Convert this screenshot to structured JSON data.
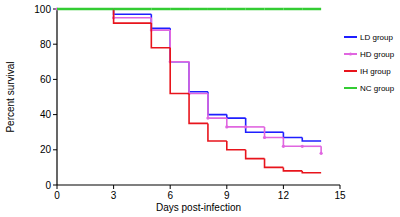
{
  "chart_data": {
    "type": "line",
    "line_style": "step",
    "x_label": "Days post-infection",
    "y_label": "Percent survival",
    "x": [
      0,
      3,
      5,
      6,
      7,
      8,
      9,
      10,
      11,
      12,
      13,
      14
    ],
    "series": [
      {
        "name": "LD group",
        "color": "#1f1fff",
        "values": [
          100,
          97,
          89,
          70,
          53,
          40,
          38,
          30,
          30,
          27,
          25,
          25
        ]
      },
      {
        "name": "HD group",
        "color": "#e066e0",
        "marker": "circle",
        "values": [
          100,
          95,
          88,
          70,
          52,
          38,
          33,
          33,
          27,
          22,
          22,
          18
        ]
      },
      {
        "name": "IH group",
        "color": "#e8141c",
        "values": [
          100,
          92,
          78,
          52,
          35,
          25,
          20,
          15,
          10,
          8,
          7,
          7
        ]
      },
      {
        "name": "NC group",
        "color": "#33cc33",
        "values": [
          100,
          100,
          100,
          100,
          100,
          100,
          100,
          100,
          100,
          100,
          100,
          100
        ]
      }
    ],
    "xlim": [
      0,
      15
    ],
    "xticks": [
      0,
      3,
      6,
      9,
      12,
      15
    ],
    "ylim": [
      0,
      100
    ],
    "yticks": [
      0,
      20,
      40,
      60,
      80,
      100
    ],
    "grid": false,
    "legend": "right"
  }
}
